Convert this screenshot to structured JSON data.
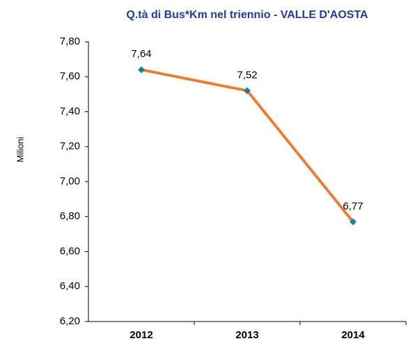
{
  "chart_data": {
    "type": "line",
    "title": "Q.tà di Bus*Km nel triennio - VALLE D'AOSTA",
    "y_label": "Milioni",
    "categories": [
      "2012",
      "2013",
      "2014"
    ],
    "series": [
      {
        "color": "#ED7D31",
        "marker_color": "#1A8296",
        "values": [
          7.64,
          7.52,
          6.77
        ],
        "value_labels": [
          "7,64",
          "7,52",
          "6,77"
        ]
      }
    ],
    "ylim": [
      6.2,
      7.8
    ],
    "yticks": [
      {
        "value": 6.2,
        "label": "6,20"
      },
      {
        "value": 6.4,
        "label": "6,40"
      },
      {
        "value": 6.6,
        "label": "6,60"
      },
      {
        "value": 6.8,
        "label": "6,80"
      },
      {
        "value": 7.0,
        "label": "7,00"
      },
      {
        "value": 7.2,
        "label": "7,20"
      },
      {
        "value": 7.4,
        "label": "7,40"
      },
      {
        "value": 7.6,
        "label": "7,60"
      },
      {
        "value": 7.8,
        "label": "7,80"
      }
    ],
    "grid": false
  }
}
